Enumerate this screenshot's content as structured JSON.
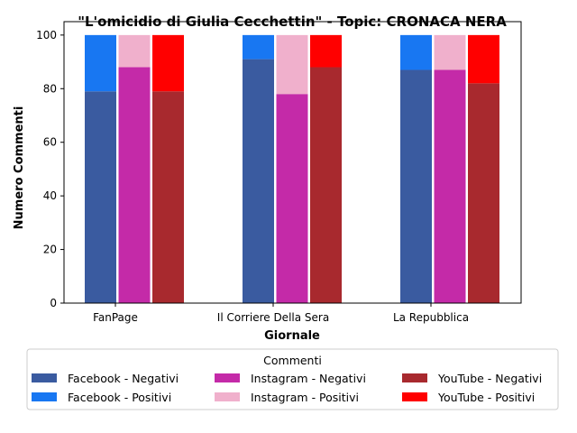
{
  "chart_data": {
    "type": "bar",
    "title": "\"L'omicidio di Giulia Cecchettin\" - Topic: CRONACA NERA",
    "xlabel": "Giornale",
    "ylabel": "Numero Commenti",
    "ylim": [
      0,
      105
    ],
    "yticks": [
      0,
      20,
      40,
      60,
      80,
      100
    ],
    "categories": [
      "FanPage",
      "Il Corriere Della Sera",
      "La Repubblica"
    ],
    "stacked": true,
    "grid": false,
    "legend": {
      "title": "Commenti",
      "placement": "bottom-center",
      "columns": 3
    },
    "series": [
      {
        "name": "Facebook - Negativi",
        "group": "Facebook",
        "stack": "base",
        "color": "#3a5ba0",
        "values": [
          79,
          91,
          87
        ]
      },
      {
        "name": "Facebook - Positivi",
        "group": "Facebook",
        "stack": "top",
        "color": "#1877f2",
        "values": [
          21,
          9,
          13
        ]
      },
      {
        "name": "Instagram - Negativi",
        "group": "Instagram",
        "stack": "base",
        "color": "#c42aa8",
        "values": [
          88,
          78,
          87
        ]
      },
      {
        "name": "Instagram - Positivi",
        "group": "Instagram",
        "stack": "top",
        "color": "#f0b0cc",
        "values": [
          12,
          22,
          13
        ]
      },
      {
        "name": "YouTube - Negativi",
        "group": "YouTube",
        "stack": "base",
        "color": "#a8292e",
        "values": [
          79,
          88,
          82
        ]
      },
      {
        "name": "YouTube - Positivi",
        "group": "YouTube",
        "stack": "top",
        "color": "#ff0000",
        "values": [
          21,
          12,
          18
        ]
      }
    ]
  }
}
